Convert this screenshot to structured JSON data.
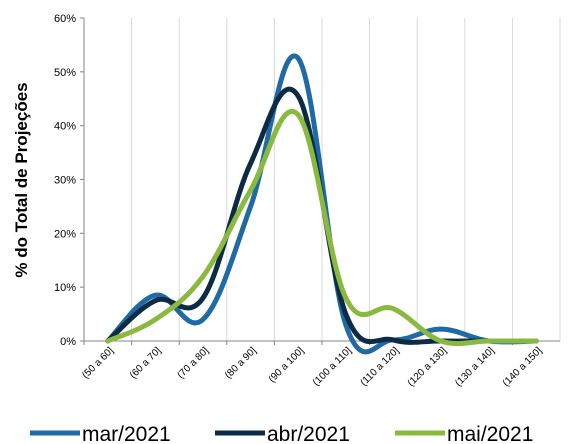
{
  "chart_data": {
    "type": "line",
    "smooth": true,
    "categories": [
      "(50 a 60]",
      "(60 a 70]",
      "(70 a 80]",
      "(80 a 90]",
      "(90 a 100]",
      "(100 a 110]",
      "(110 a 120]",
      "(120 a 130]",
      "(130 a 140]",
      "(140 a 150]"
    ],
    "series": [
      {
        "name": "mar/2021",
        "color": "#1f6aa5",
        "values": [
          0.0,
          8.5,
          4.0,
          25.0,
          52.5,
          3.0,
          0.2,
          2.2,
          0.0,
          0.0
        ]
      },
      {
        "name": "abr/2021",
        "color": "#0d2b45",
        "values": [
          0.0,
          7.5,
          8.0,
          33.0,
          45.5,
          5.0,
          0.2,
          0.0,
          0.0,
          0.0
        ]
      },
      {
        "name": "mai/2021",
        "color": "#8ab93f",
        "values": [
          0.0,
          4.0,
          12.0,
          28.0,
          42.0,
          8.0,
          6.0,
          0.0,
          0.0,
          0.0
        ]
      }
    ],
    "ylabel": "% do Total de Projeções",
    "xlabel": "",
    "ylim": [
      0,
      60
    ],
    "yticks": [
      "0%",
      "10%",
      "20%",
      "30%",
      "40%",
      "50%",
      "60%"
    ],
    "grid": "vertical",
    "legend_position": "bottom"
  }
}
